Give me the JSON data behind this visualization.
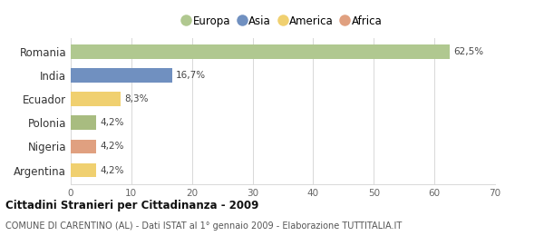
{
  "categories": [
    "Argentina",
    "Nigeria",
    "Polonia",
    "Ecuador",
    "India",
    "Romania"
  ],
  "values": [
    4.2,
    4.2,
    4.2,
    8.3,
    16.7,
    62.5
  ],
  "labels": [
    "4,2%",
    "4,2%",
    "4,2%",
    "8,3%",
    "16,7%",
    "62,5%"
  ],
  "bar_colors": [
    "#f0d070",
    "#e0a080",
    "#a8bc80",
    "#f0d070",
    "#7090c0",
    "#b0c890"
  ],
  "legend_items": [
    {
      "label": "Europa",
      "color": "#b0c890"
    },
    {
      "label": "Asia",
      "color": "#7090c0"
    },
    {
      "label": "America",
      "color": "#f0d070"
    },
    {
      "label": "Africa",
      "color": "#e0a080"
    }
  ],
  "xlim": [
    0,
    70
  ],
  "xticks": [
    0,
    10,
    20,
    30,
    40,
    50,
    60,
    70
  ],
  "title": "Cittadini Stranieri per Cittadinanza - 2009",
  "subtitle": "COMUNE DI CARENTINO (AL) - Dati ISTAT al 1° gennaio 2009 - Elaborazione TUTTITALIA.IT",
  "background_color": "#ffffff",
  "grid_color": "#d8d8d8",
  "bar_height": 0.6
}
